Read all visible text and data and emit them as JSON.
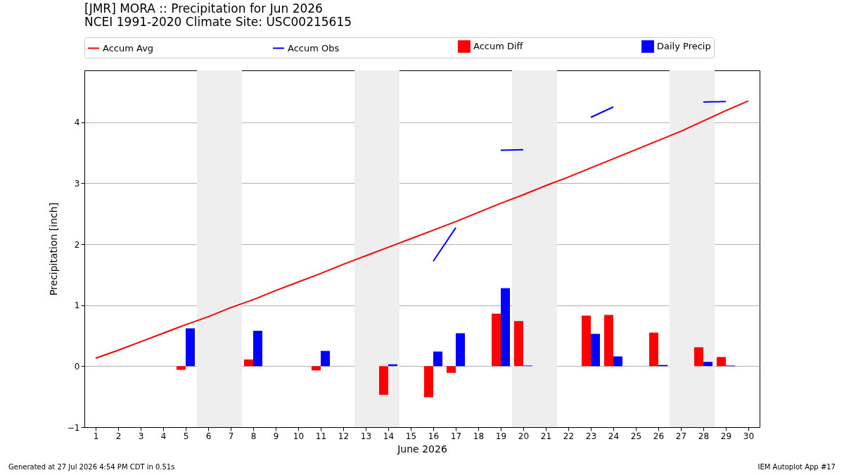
{
  "chart_data": {
    "type": "bar",
    "title": "[JMR] MORA :: Precipitation for Jun 2026",
    "subtitle": "NCEI 1991-2020 Climate Site: USC00215615",
    "xlabel": "June 2026",
    "ylabel": "Precipitation [inch]",
    "x": [
      1,
      2,
      3,
      4,
      5,
      6,
      7,
      8,
      9,
      10,
      11,
      12,
      13,
      14,
      15,
      16,
      17,
      18,
      19,
      20,
      21,
      22,
      23,
      24,
      25,
      26,
      27,
      28,
      29,
      30
    ],
    "series": [
      {
        "name": "Accum Avg",
        "type": "line",
        "color": "#ff0000",
        "values": [
          0.13,
          0.26,
          0.4,
          0.54,
          0.68,
          0.81,
          0.96,
          1.09,
          1.24,
          1.38,
          1.52,
          1.67,
          1.81,
          1.95,
          2.09,
          2.23,
          2.37,
          2.52,
          2.67,
          2.81,
          2.96,
          3.1,
          3.25,
          3.4,
          3.55,
          3.7,
          3.85,
          4.02,
          4.19,
          4.35
        ]
      },
      {
        "name": "Accum Obs",
        "type": "line",
        "color": "#0000ff",
        "values": [
          null,
          null,
          null,
          null,
          null,
          null,
          null,
          null,
          null,
          null,
          null,
          null,
          null,
          null,
          null,
          1.72,
          2.27,
          null,
          3.54,
          3.55,
          null,
          null,
          4.08,
          4.25,
          null,
          null,
          null,
          4.33,
          4.34,
          null
        ]
      },
      {
        "name": "Accum Diff",
        "color": "#ff0000",
        "values": [
          null,
          null,
          null,
          null,
          -0.06,
          null,
          null,
          0.11,
          null,
          null,
          -0.07,
          null,
          null,
          -0.47,
          null,
          -0.51,
          -0.11,
          null,
          0.86,
          0.74,
          null,
          null,
          0.83,
          0.84,
          null,
          0.55,
          null,
          0.31,
          0.15,
          null
        ]
      },
      {
        "name": "Daily Precip",
        "color": "#0000ff",
        "values": [
          null,
          null,
          null,
          null,
          0.62,
          null,
          null,
          0.58,
          null,
          null,
          0.25,
          null,
          null,
          0.03,
          null,
          0.24,
          0.54,
          null,
          1.28,
          0.01,
          null,
          null,
          0.53,
          0.16,
          null,
          0.02,
          null,
          0.07,
          0.01,
          null
        ]
      }
    ],
    "xlim": [
      0.5,
      30.5
    ],
    "xticks": [
      1,
      2,
      3,
      4,
      5,
      6,
      7,
      8,
      9,
      10,
      11,
      12,
      13,
      14,
      15,
      16,
      17,
      18,
      19,
      20,
      21,
      22,
      23,
      24,
      25,
      26,
      27,
      28,
      29,
      30
    ],
    "ylim": [
      -1,
      4.85
    ],
    "yticks": [
      -1,
      0,
      1,
      2,
      3,
      4
    ],
    "bands": [
      {
        "axis": "x",
        "from": 5.5,
        "to": 7.5,
        "color": "#eeeeee"
      },
      {
        "axis": "x",
        "from": 12.5,
        "to": 14.5,
        "color": "#eeeeee"
      },
      {
        "axis": "x",
        "from": 19.5,
        "to": 21.5,
        "color": "#eeeeee"
      },
      {
        "axis": "x",
        "from": 26.5,
        "to": 28.5,
        "color": "#eeeeee"
      }
    ],
    "grid": "y",
    "legend": "top",
    "annotations": [
      "Generated at 27 Jul 2026 4:54 PM CDT in 0.51s",
      "IEM Autoplot App #17"
    ]
  }
}
